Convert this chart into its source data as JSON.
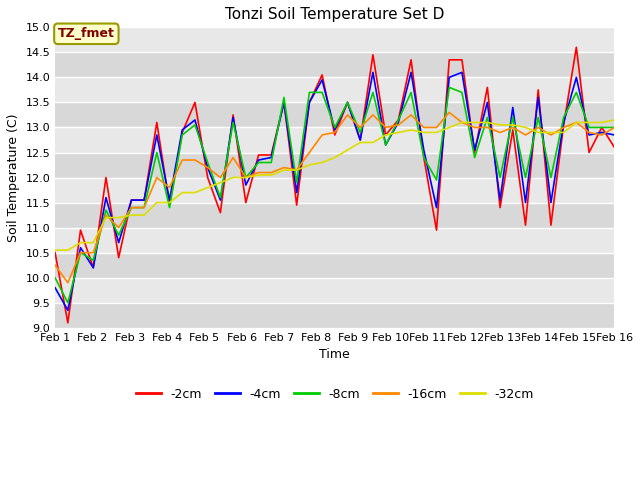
{
  "title": "Tonzi Soil Temperature Set D",
  "xlabel": "Time",
  "ylabel": "Soil Temperature (C)",
  "ylim": [
    9.0,
    15.0
  ],
  "yticks": [
    9.0,
    9.5,
    10.0,
    10.5,
    11.0,
    11.5,
    12.0,
    12.5,
    13.0,
    13.5,
    14.0,
    14.5,
    15.0
  ],
  "xtick_labels": [
    "Feb 1",
    "Feb 2",
    "Feb 3",
    "Feb 4",
    "Feb 5",
    "Feb 6",
    "Feb 7",
    "Feb 8",
    "Feb 9",
    "Feb 10",
    "Feb 11",
    "Feb 12",
    "Feb 13",
    "Feb 14",
    "Feb 15",
    "Feb 16"
  ],
  "plot_bg_color": "#e8e8e8",
  "fig_bg_color": "#ffffff",
  "grid_color": "#ffffff",
  "legend_label": "TZ_fmet",
  "legend_box_facecolor": "#ffffcc",
  "legend_box_edgecolor": "#999900",
  "legend_text_color": "#800000",
  "title_fontsize": 11,
  "axis_label_fontsize": 9,
  "tick_fontsize": 8,
  "series": [
    {
      "label": "-2cm",
      "color": "#ff0000",
      "values": [
        10.5,
        9.1,
        10.95,
        10.2,
        12.0,
        10.4,
        11.55,
        11.55,
        13.1,
        11.45,
        12.9,
        13.5,
        12.0,
        11.3,
        13.25,
        11.5,
        12.45,
        12.45,
        13.5,
        11.45,
        13.5,
        14.05,
        12.85,
        13.5,
        12.75,
        14.45,
        12.85,
        13.15,
        14.35,
        12.4,
        10.95,
        14.35,
        14.35,
        12.5,
        13.8,
        11.4,
        12.95,
        11.05,
        13.75,
        11.05,
        13.05,
        14.6,
        12.5,
        13.0,
        12.6
      ]
    },
    {
      "label": "-4cm",
      "color": "#0000ff",
      "values": [
        9.8,
        9.35,
        10.6,
        10.2,
        11.6,
        10.7,
        11.55,
        11.55,
        12.85,
        11.55,
        12.95,
        13.15,
        12.2,
        11.55,
        13.2,
        11.85,
        12.35,
        12.4,
        13.5,
        11.7,
        13.5,
        13.95,
        12.95,
        13.5,
        12.75,
        14.1,
        12.65,
        13.1,
        14.1,
        12.55,
        11.4,
        14.0,
        14.1,
        12.55,
        13.5,
        11.55,
        13.4,
        11.5,
        13.6,
        11.5,
        13.1,
        14.0,
        12.85,
        12.9,
        12.85
      ]
    },
    {
      "label": "-8cm",
      "color": "#00cc00",
      "values": [
        10.0,
        9.5,
        10.5,
        10.35,
        11.35,
        10.85,
        11.4,
        11.4,
        12.5,
        11.4,
        12.85,
        13.05,
        12.3,
        11.6,
        13.1,
        12.0,
        12.3,
        12.3,
        13.6,
        11.9,
        13.7,
        13.7,
        13.0,
        13.5,
        12.9,
        13.7,
        12.65,
        13.15,
        13.7,
        12.4,
        11.95,
        13.8,
        13.7,
        12.4,
        13.2,
        12.0,
        13.2,
        12.0,
        13.2,
        12.0,
        13.2,
        13.7,
        13.0,
        13.0,
        13.0
      ]
    },
    {
      "label": "-16cm",
      "color": "#ff8800",
      "values": [
        10.25,
        9.9,
        10.5,
        10.5,
        11.25,
        11.0,
        11.4,
        11.4,
        12.0,
        11.8,
        12.35,
        12.35,
        12.2,
        12.0,
        12.4,
        12.0,
        12.1,
        12.1,
        12.2,
        12.15,
        12.5,
        12.85,
        12.9,
        13.25,
        13.0,
        13.25,
        13.0,
        13.05,
        13.25,
        13.0,
        13.0,
        13.3,
        13.1,
        13.0,
        13.0,
        12.9,
        13.0,
        12.85,
        13.0,
        12.85,
        13.0,
        13.1,
        12.9,
        12.85,
        13.0
      ]
    },
    {
      "label": "-32cm",
      "color": "#dddd00",
      "values": [
        10.55,
        10.55,
        10.7,
        10.7,
        11.2,
        11.2,
        11.25,
        11.25,
        11.5,
        11.5,
        11.7,
        11.7,
        11.8,
        11.9,
        12.0,
        12.0,
        12.05,
        12.05,
        12.15,
        12.15,
        12.25,
        12.3,
        12.4,
        12.55,
        12.7,
        12.7,
        12.85,
        12.9,
        12.95,
        12.9,
        12.9,
        13.0,
        13.1,
        13.1,
        13.1,
        13.05,
        13.05,
        13.0,
        12.9,
        12.9,
        12.9,
        13.1,
        13.1,
        13.1,
        13.15
      ]
    }
  ]
}
